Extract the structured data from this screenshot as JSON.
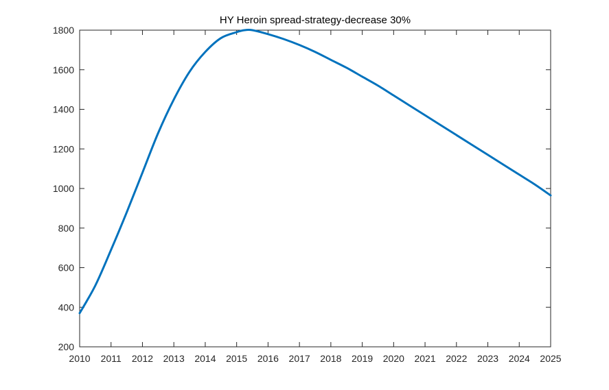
{
  "chart_data": {
    "type": "line",
    "title": "HY Heroin spread-strategy-decrease 30%",
    "xlabel": "",
    "ylabel": "",
    "xlim": [
      2010,
      2025
    ],
    "ylim": [
      200,
      1800
    ],
    "xticks": [
      2010,
      2011,
      2012,
      2013,
      2014,
      2015,
      2016,
      2017,
      2018,
      2019,
      2020,
      2021,
      2022,
      2023,
      2024,
      2025
    ],
    "yticks": [
      200,
      400,
      600,
      800,
      1000,
      1200,
      1400,
      1600,
      1800
    ],
    "grid": false,
    "series": [
      {
        "color": "#0072BD",
        "x": [
          2010,
          2010.5,
          2011,
          2011.5,
          2012,
          2012.5,
          2013,
          2013.5,
          2014,
          2014.5,
          2015,
          2015.25,
          2015.5,
          2016,
          2016.5,
          2017,
          2017.5,
          2018,
          2018.5,
          2019,
          2019.5,
          2020,
          2020.5,
          2021,
          2021.5,
          2022,
          2022.5,
          2023,
          2023.5,
          2024,
          2024.5,
          2025
        ],
        "y": [
          370,
          510,
          690,
          880,
          1080,
          1280,
          1450,
          1590,
          1690,
          1760,
          1790,
          1800,
          1800,
          1780,
          1755,
          1725,
          1690,
          1650,
          1610,
          1565,
          1520,
          1470,
          1420,
          1370,
          1320,
          1270,
          1220,
          1170,
          1120,
          1070,
          1020,
          965
        ]
      }
    ]
  }
}
